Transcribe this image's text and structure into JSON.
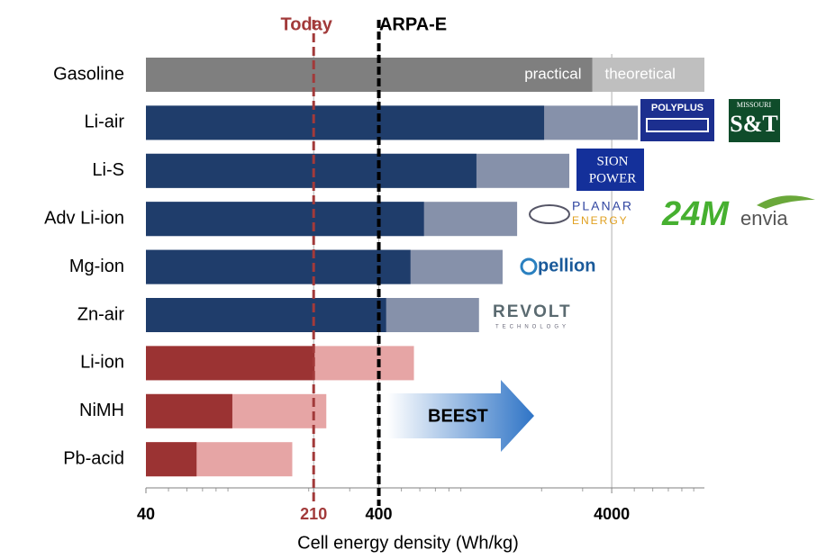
{
  "chart_data": {
    "type": "bar",
    "orientation": "horizontal",
    "x_axis_label": "Cell energy density (Wh/kg)",
    "log_scale": true,
    "xlim": [
      40,
      10000
    ],
    "xticks": [
      40,
      210,
      400,
      4000
    ],
    "tick_colors": [
      "#000000",
      "#a23a3a",
      "#000000",
      "#000000"
    ],
    "categories": [
      "Gasoline",
      "Li-air",
      "Li-S",
      "Adv Li-ion",
      "Mg-ion",
      "Zn-air",
      "Li-ion",
      "NiMH",
      "Pb-acid"
    ],
    "series": [
      {
        "name": "practical",
        "values": [
          3300,
          2050,
          1050,
          625,
          547,
          430,
          212,
          94,
          66
        ],
        "colors": [
          "#7f7f7f",
          "#1f3d6b",
          "#1f3d6b",
          "#1f3d6b",
          "#1f3d6b",
          "#1f3d6b",
          "#9b3333",
          "#9b3333",
          "#9b3333"
        ]
      },
      {
        "name": "theoretical",
        "values": [
          10000,
          5180,
          2630,
          1570,
          1360,
          1077,
          566,
          238,
          170
        ],
        "colors": [
          "#bfbfbf",
          "#8691aa",
          "#8691aa",
          "#8691aa",
          "#8691aa",
          "#8691aa",
          "#e6a5a5",
          "#e6a5a5",
          "#e6a5a5"
        ]
      }
    ],
    "reference_lines": [
      {
        "label": "Today",
        "value": 210,
        "color": "#a23a3a"
      },
      {
        "label": "ARPA-E",
        "value": 400,
        "color": "#000000"
      }
    ],
    "arrow_label": "BEEST",
    "logos": [
      "POLYPLUS",
      "MISSOURI",
      "S&T",
      "SION",
      "POWER",
      "PLANAR",
      "ENERGY",
      "24M",
      "envia",
      "pellion",
      "REVOLT",
      "TECHNOLOGY"
    ]
  }
}
